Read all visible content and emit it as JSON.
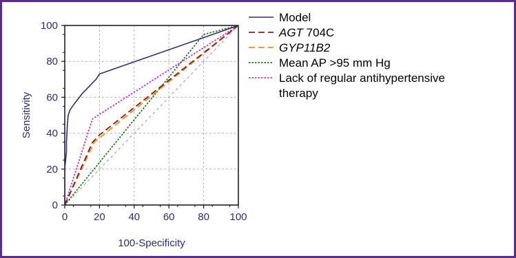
{
  "chart_data": {
    "type": "line",
    "xlabel": "100-Specificity",
    "ylabel": "Sensitivity",
    "xlim": [
      0,
      100
    ],
    "ylim": [
      0,
      100
    ],
    "xticks": [
      "0",
      "20",
      "40",
      "60",
      "80",
      "100"
    ],
    "yticks": [
      "0",
      "20",
      "40",
      "60",
      "80",
      "100"
    ],
    "grid": true,
    "legend_position": "right",
    "series": [
      {
        "name": "Model",
        "name_parts": [
          "Model"
        ],
        "color": "#2b2b7a",
        "style": "solid",
        "x": [
          0,
          0,
          1,
          1,
          1.5,
          2,
          3,
          6,
          10,
          14,
          18,
          20,
          100
        ],
        "y": [
          0,
          20,
          30,
          35,
          45,
          50,
          53,
          57,
          62,
          66,
          70,
          73,
          100
        ]
      },
      {
        "name": "AGT 704C",
        "name_parts": [
          "AGT",
          " 704C"
        ],
        "italic_first": true,
        "color": "#8b1a1a",
        "style": "dashed",
        "x": [
          0,
          16,
          20,
          100
        ],
        "y": [
          0,
          35,
          39,
          100
        ]
      },
      {
        "name": "GYP11B2",
        "name_parts": [
          "GYP11B2"
        ],
        "italic_first": true,
        "color": "#f08c1e",
        "style": "dashed",
        "x": [
          0,
          17,
          100
        ],
        "y": [
          0,
          35,
          100
        ]
      },
      {
        "name": "Mean AP >95 mm Hg",
        "name_parts": [
          "Mean AP >95 mm Hg"
        ],
        "color": "#1e7a1e",
        "style": "dotted",
        "x": [
          0,
          80,
          100
        ],
        "y": [
          0,
          95,
          100
        ]
      },
      {
        "name": "Lack of regular antihypertensive therapy",
        "name_parts": [
          "Lack of regular antihypertensive",
          "therapy"
        ],
        "color": "#cc33cc",
        "style": "dotted",
        "x": [
          0,
          16,
          100
        ],
        "y": [
          0,
          48,
          100
        ]
      }
    ],
    "reference_line": {
      "x": [
        0,
        100
      ],
      "y": [
        0,
        100
      ],
      "color": "#aaaaaa",
      "style": "dashed"
    }
  }
}
